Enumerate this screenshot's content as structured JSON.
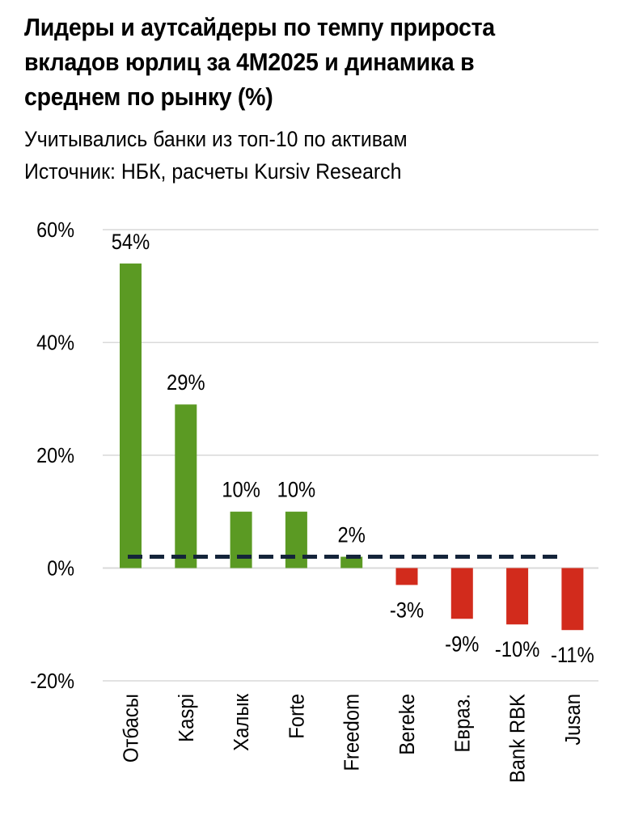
{
  "title": "Лидеры и аутсайдеры по темпу прироста вкладов юрлиц за 4М2025 и динамика в среднем по рынку (%)",
  "subtitle": "Учитывались банки из топ-10 по активам",
  "source": "Источник: НБК, расчеты Kursiv Research",
  "chart_data": {
    "type": "bar",
    "categories": [
      "Отбасы",
      "Kaspi",
      "Халык",
      "Forte",
      "Freedom",
      "Bereke",
      "Евраз.",
      "Bank RBK",
      "Jusan"
    ],
    "values": [
      54,
      29,
      10,
      10,
      2,
      -3,
      -9,
      -10,
      -11
    ],
    "data_labels": [
      "54%",
      "29%",
      "10%",
      "10%",
      "2%",
      "-3%",
      "-9%",
      "-10%",
      "-11%"
    ],
    "ylim": [
      -20,
      60
    ],
    "yticks": [
      60,
      40,
      20,
      0,
      -20
    ],
    "ytick_labels": [
      "60%",
      "40%",
      "20%",
      "0%",
      "-20%"
    ],
    "market_average": 2,
    "colors": {
      "positive": "#5b9a23",
      "negative": "#d22b1c",
      "average_line": "#14243a",
      "grid": "#d9d9d9"
    },
    "grid": true
  }
}
